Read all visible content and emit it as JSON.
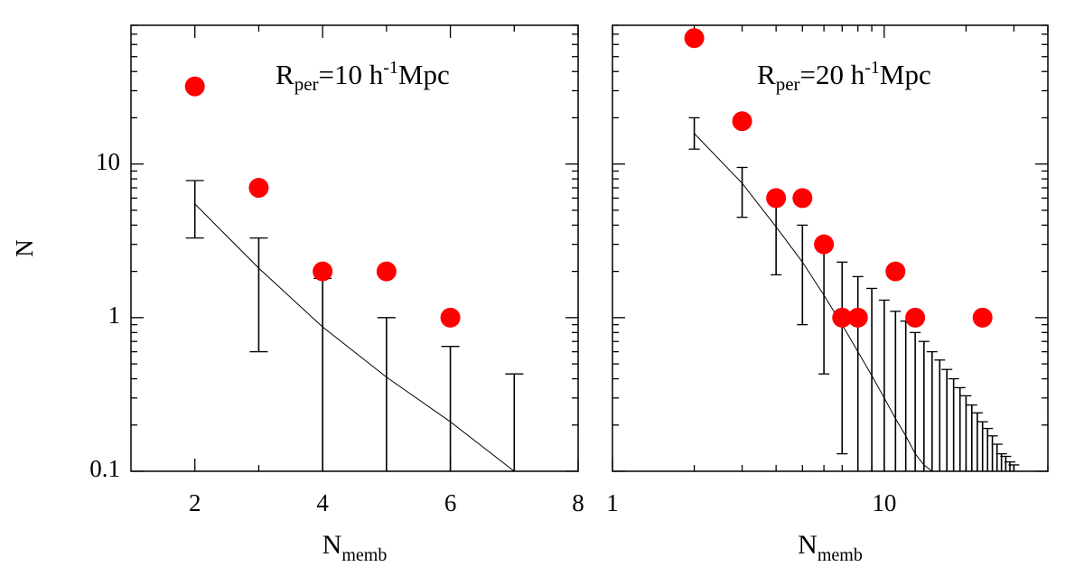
{
  "chart_data": [
    {
      "type": "scatter",
      "xscale": "linear",
      "yscale": "log",
      "xlim": [
        1,
        8
      ],
      "ylim": [
        0.1,
        80
      ],
      "xticks": [
        2,
        4,
        6,
        8
      ],
      "xminor": [
        3,
        5,
        7
      ],
      "yticks": [
        0.1,
        1,
        10
      ],
      "yminor": [
        0.2,
        0.3,
        0.4,
        0.5,
        0.6,
        0.7,
        0.8,
        0.9,
        2,
        3,
        4,
        5,
        6,
        7,
        8,
        9,
        20,
        30,
        40,
        50,
        60,
        70,
        80
      ],
      "show_ytick_labels": true,
      "ylabel": "N",
      "xlabel": {
        "base": "N",
        "sub": "memb"
      },
      "annotation": {
        "base": "R",
        "sub": "per",
        "mid": "=10 h",
        "sup": "-1",
        "end": "Mpc"
      },
      "points": {
        "color": "#ff0000",
        "x": [
          2,
          3,
          4,
          5,
          6
        ],
        "values": [
          32,
          7,
          2,
          2,
          1
        ]
      },
      "model": {
        "x": [
          2,
          3,
          4,
          5,
          6,
          7
        ],
        "values": [
          5.5,
          2.1,
          0.87,
          0.41,
          0.21,
          0.1
        ]
      },
      "error_bars": {
        "x": [
          2,
          3,
          4,
          5,
          6,
          7
        ],
        "lower": [
          3.3,
          0.6,
          0,
          0,
          0,
          0
        ],
        "upper": [
          7.8,
          3.3,
          1.8,
          1.0,
          0.65,
          0.43
        ]
      }
    },
    {
      "type": "scatter",
      "xscale": "log",
      "yscale": "log",
      "xlim": [
        1,
        40
      ],
      "ylim": [
        0.1,
        80
      ],
      "xticks": [
        1,
        10
      ],
      "xminor": [
        2,
        3,
        4,
        5,
        6,
        7,
        8,
        9,
        20,
        30,
        40
      ],
      "yticks": [
        0.1,
        1,
        10
      ],
      "yminor": [
        0.2,
        0.3,
        0.4,
        0.5,
        0.6,
        0.7,
        0.8,
        0.9,
        2,
        3,
        4,
        5,
        6,
        7,
        8,
        9,
        20,
        30,
        40,
        50,
        60,
        70,
        80
      ],
      "show_ytick_labels": false,
      "xlabel": {
        "base": "N",
        "sub": "memb"
      },
      "annotation": {
        "base": "R",
        "sub": "per",
        "mid": "=20 h",
        "sup": "-1",
        "end": "Mpc"
      },
      "points": {
        "color": "#ff0000",
        "x": [
          2,
          3,
          4,
          5,
          6,
          7,
          8,
          11,
          13,
          23
        ],
        "values": [
          66,
          19,
          6,
          6,
          3,
          1,
          1,
          2,
          1,
          1
        ]
      },
      "model": {
        "x": [
          2,
          3,
          4,
          5,
          6,
          7,
          8,
          9,
          10,
          11,
          12,
          13,
          14,
          15
        ],
        "values": [
          15.8,
          7.5,
          3.9,
          2.3,
          1.4,
          0.9,
          0.6,
          0.42,
          0.3,
          0.22,
          0.17,
          0.13,
          0.11,
          0.1
        ]
      },
      "error_bars": {
        "x": [
          2,
          3,
          4,
          5,
          6,
          7,
          8,
          9,
          10,
          11,
          12,
          13,
          14,
          15,
          16,
          17,
          18,
          19,
          20,
          21,
          22,
          23,
          24,
          25,
          26,
          27,
          28,
          29,
          30
        ],
        "lower": [
          12.5,
          4.5,
          1.9,
          0.9,
          0.43,
          0.13,
          0,
          0,
          0,
          0,
          0,
          0,
          0,
          0,
          0,
          0,
          0,
          0,
          0,
          0,
          0,
          0,
          0,
          0,
          0,
          0,
          0,
          0,
          0
        ],
        "upper": [
          20,
          9.5,
          6,
          4,
          2.9,
          2.3,
          1.85,
          1.55,
          1.3,
          1.1,
          0.95,
          0.8,
          0.7,
          0.6,
          0.53,
          0.46,
          0.4,
          0.35,
          0.31,
          0.27,
          0.24,
          0.21,
          0.19,
          0.17,
          0.15,
          0.13,
          0.125,
          0.115,
          0.11
        ]
      }
    }
  ]
}
